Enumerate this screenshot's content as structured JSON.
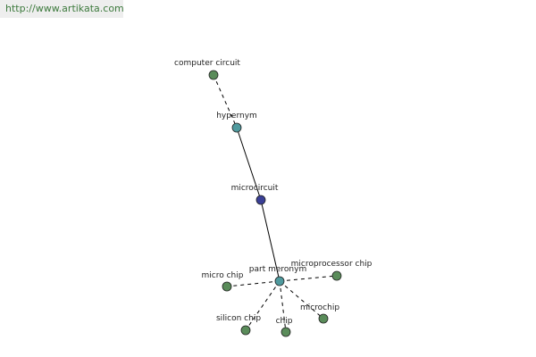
{
  "header": {
    "url": "http://www.artikata.com"
  },
  "nodes": [
    {
      "label": "computer circuit"
    },
    {
      "label": "hypernym"
    },
    {
      "label": "microcircuit"
    },
    {
      "label": "part meronym"
    },
    {
      "label": "microprocessor chip"
    },
    {
      "label": "micro chip"
    },
    {
      "label": "silicon chip"
    },
    {
      "label": "chip"
    },
    {
      "label": "microchip"
    }
  ]
}
